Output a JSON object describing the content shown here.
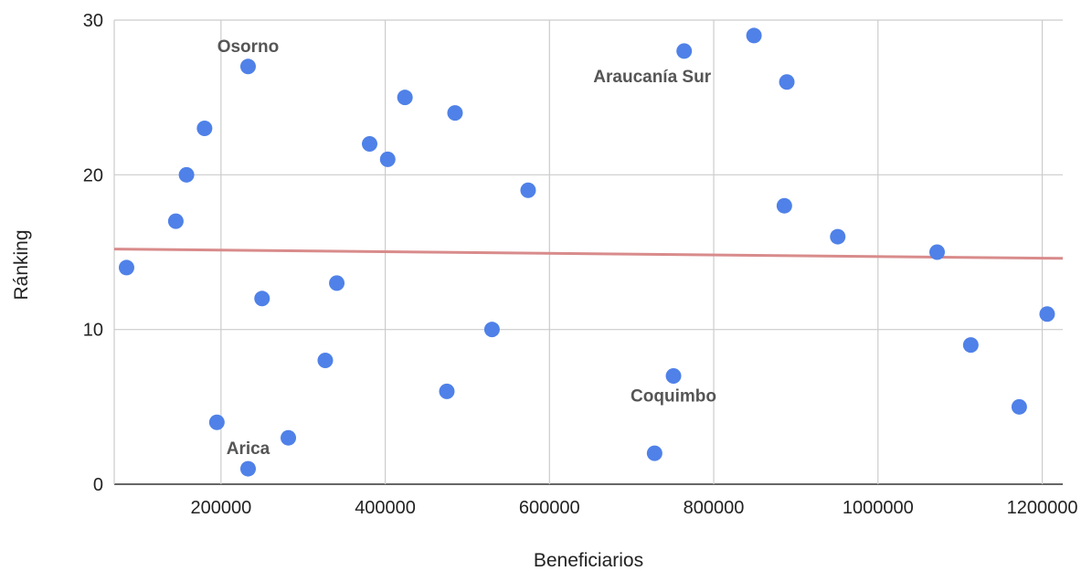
{
  "chart_data": {
    "type": "scatter",
    "xlabel": "Beneficiarios",
    "ylabel": "Ránking",
    "xlim": [
      70000,
      1225000
    ],
    "ylim": [
      0,
      30
    ],
    "xticks": [
      200000,
      400000,
      600000,
      800000,
      1000000,
      1200000
    ],
    "yticks": [
      0,
      10,
      20,
      30
    ],
    "xtick_labels": [
      "200000",
      "400000",
      "600000",
      "800000",
      "1000000",
      "1200000"
    ],
    "ytick_labels": [
      "0",
      "10",
      "20",
      "30"
    ],
    "grid": true,
    "points": [
      {
        "x": 85000,
        "y": 14
      },
      {
        "x": 145000,
        "y": 17
      },
      {
        "x": 158000,
        "y": 20
      },
      {
        "x": 180000,
        "y": 23
      },
      {
        "x": 195000,
        "y": 4
      },
      {
        "x": 233000,
        "y": 1
      },
      {
        "x": 233000,
        "y": 27
      },
      {
        "x": 250000,
        "y": 12
      },
      {
        "x": 282000,
        "y": 3
      },
      {
        "x": 327000,
        "y": 8
      },
      {
        "x": 341000,
        "y": 13
      },
      {
        "x": 381000,
        "y": 22
      },
      {
        "x": 403000,
        "y": 21
      },
      {
        "x": 424000,
        "y": 25
      },
      {
        "x": 475000,
        "y": 6
      },
      {
        "x": 485000,
        "y": 24
      },
      {
        "x": 530000,
        "y": 10
      },
      {
        "x": 574000,
        "y": 19
      },
      {
        "x": 728000,
        "y": 2
      },
      {
        "x": 751000,
        "y": 7
      },
      {
        "x": 764000,
        "y": 28
      },
      {
        "x": 849000,
        "y": 29
      },
      {
        "x": 886000,
        "y": 18
      },
      {
        "x": 889000,
        "y": 26
      },
      {
        "x": 951000,
        "y": 16
      },
      {
        "x": 1072000,
        "y": 15
      },
      {
        "x": 1113000,
        "y": 9
      },
      {
        "x": 1172000,
        "y": 5
      },
      {
        "x": 1206000,
        "y": 11
      }
    ],
    "trendline": {
      "x": [
        70000,
        1225000
      ],
      "y": [
        15.2,
        14.6
      ]
    },
    "annotations": [
      {
        "text": "Osorno",
        "x": 233000,
        "y": 27,
        "pos": "above"
      },
      {
        "text": "Araucanía Sur",
        "x": 764000,
        "y": 28,
        "pos": "below-left"
      },
      {
        "text": "Coquimbo",
        "x": 751000,
        "y": 7,
        "pos": "below"
      },
      {
        "text": "Arica",
        "x": 233000,
        "y": 1,
        "pos": "above"
      }
    ],
    "colors": {
      "point": "#4f81e8",
      "trendline": "#d98b8b",
      "grid": "#cccccc",
      "axis": "#333333",
      "annotation": "#555555"
    }
  }
}
